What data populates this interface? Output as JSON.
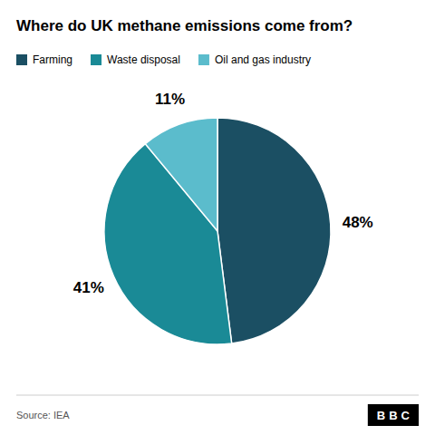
{
  "chart_data": {
    "type": "pie",
    "title": "Where do UK methane emissions come from?",
    "categories": [
      "Farming",
      "Waste disposal",
      "Oil and gas industry"
    ],
    "values": [
      48,
      41,
      11
    ],
    "value_labels": [
      "48%",
      "41%",
      "11%"
    ],
    "colors": [
      "#1b4f63",
      "#1a8a96",
      "#5bbccc"
    ],
    "data_labels": true,
    "legend": "top",
    "annotations": [
      "Source: IEA",
      "BBC"
    ]
  }
}
